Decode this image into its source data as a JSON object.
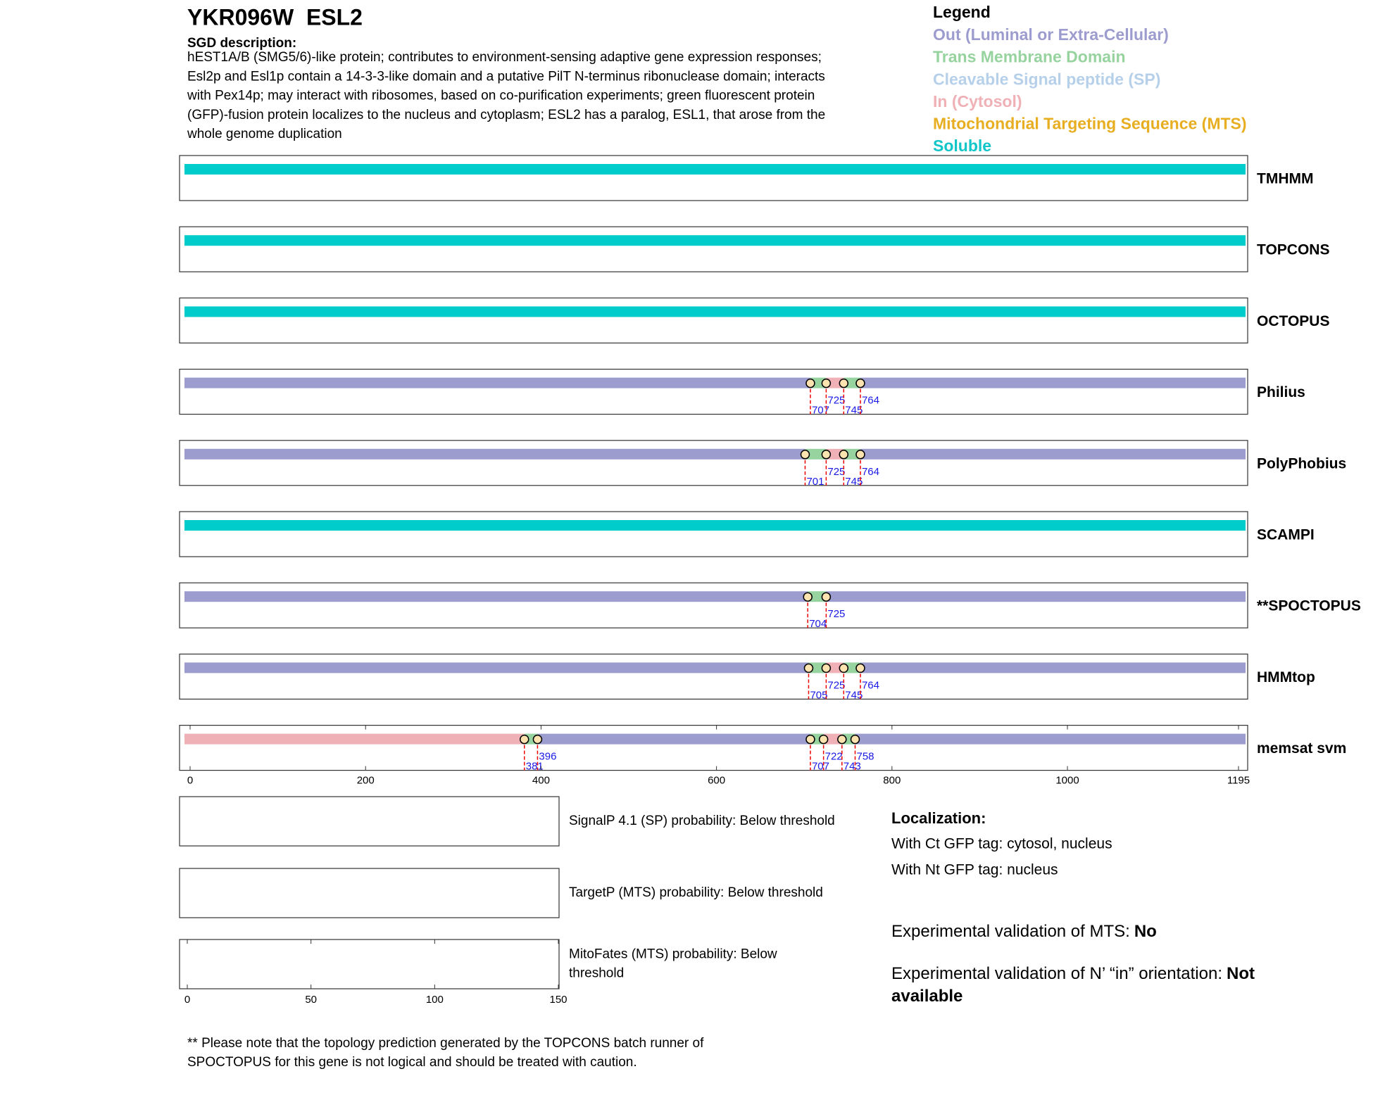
{
  "header": {
    "title": "YKR096W  ESL2",
    "description_heading": "SGD description:",
    "description_lines": [
      "hEST1A/B (SMG5/6)-like protein; contributes to environment-sensing adaptive gene expression responses;",
      "Esl2p and Esl1p contain a 14-3-3-like domain and a putative PilT N-terminus ribonuclease domain; interacts",
      "with Pex14p; may interact with ribosomes, based on co-purification experiments; green fluorescent protein",
      "(GFP)-fusion protein localizes to the nucleus and cytoplasm; ESL2 has a paralog, ESL1, that arose from the",
      "whole genome duplication"
    ]
  },
  "legend": {
    "title": "Legend",
    "items": [
      {
        "label": "Out (Luminal or Extra-Cellular)",
        "color": "#9c9ccf"
      },
      {
        "label": "Trans Membrane Domain",
        "color": "#96d39f"
      },
      {
        "label": "Cleavable Signal peptide (SP)",
        "color": "#b6d0ea"
      },
      {
        "label": "In (Cytosol)",
        "color": "#efb1b6"
      },
      {
        "label": "Mitochondrial Targeting Sequence (MTS)",
        "color": "#e8ae22"
      },
      {
        "label": "Soluble",
        "color": "#11c5c8"
      }
    ]
  },
  "axis": {
    "xlim": [
      0,
      1195
    ],
    "xticks": [
      0,
      200,
      400,
      600,
      800,
      1000,
      1195
    ]
  },
  "tracks": [
    {
      "name": "TMHMM",
      "boundaries": [],
      "colors": [
        "#00cccc"
      ]
    },
    {
      "name": "TOPCONS",
      "boundaries": [],
      "colors": [
        "#00cccc"
      ]
    },
    {
      "name": "OCTOPUS",
      "boundaries": [],
      "colors": [
        "#00cccc"
      ]
    },
    {
      "name": "Philius",
      "boundaries": [
        707,
        725,
        745,
        764
      ],
      "colors": [
        "#9c9ccf",
        "#96d39f",
        "#efb1b6",
        "#96d39f",
        "#9c9ccf"
      ]
    },
    {
      "name": "PolyPhobius",
      "boundaries": [
        701,
        725,
        745,
        764
      ],
      "colors": [
        "#9c9ccf",
        "#96d39f",
        "#efb1b6",
        "#96d39f",
        "#9c9ccf"
      ]
    },
    {
      "name": "SCAMPI",
      "boundaries": [],
      "colors": [
        "#00cccc"
      ]
    },
    {
      "name": "**SPOCTOPUS",
      "boundaries": [
        704,
        725
      ],
      "colors": [
        "#9c9ccf",
        "#96d39f",
        "#9c9ccf"
      ]
    },
    {
      "name": "HMMtop",
      "boundaries": [
        705,
        725,
        745,
        764
      ],
      "colors": [
        "#9c9ccf",
        "#96d39f",
        "#efb1b6",
        "#96d39f",
        "#9c9ccf"
      ]
    },
    {
      "name": "memsat svm",
      "boundaries": [
        381,
        396,
        707,
        722,
        743,
        758
      ],
      "colors": [
        "#efb1b6",
        "#96d39f",
        "#9c9ccf",
        "#96d39f",
        "#efb1b6",
        "#96d39f",
        "#9c9ccf"
      ]
    }
  ],
  "probability_panels": [
    {
      "lines": [
        "SignalP 4.1 (SP) probability: Below threshold"
      ]
    },
    {
      "lines": [
        "TargetP (MTS) probability: Below threshold"
      ]
    },
    {
      "lines": [
        "MitoFates (MTS) probability: Below",
        "threshold"
      ],
      "xlim": [
        0,
        150
      ],
      "xticks": [
        0,
        50,
        100,
        150
      ]
    }
  ],
  "localization": {
    "title": "Localization:",
    "lines": [
      "With Ct GFP tag: cytosol, nucleus",
      "With Nt GFP tag: nucleus"
    ]
  },
  "validations": [
    {
      "label": "Experimental validation of MTS:",
      "value": "No"
    },
    {
      "label": "Experimental validation of N’ “in” orientation:",
      "value": "Not available"
    }
  ],
  "footnote": {
    "lines": [
      "** Please note that the topology prediction generated by the TOPCONS batch runner of",
      "SPOCTOPUS for this gene is not logical and should be treated with caution."
    ]
  }
}
